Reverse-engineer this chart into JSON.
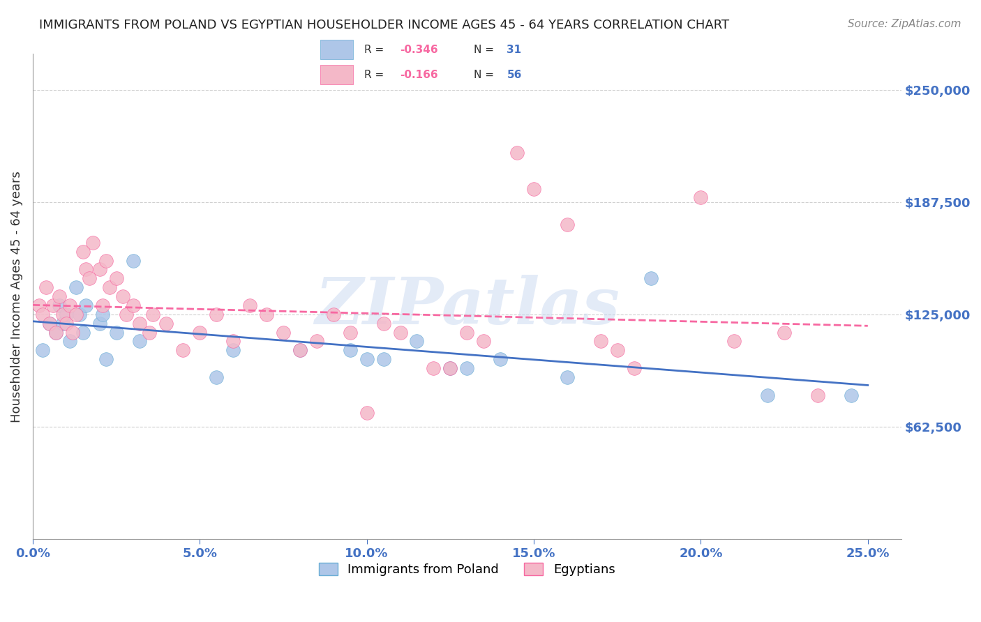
{
  "title": "IMMIGRANTS FROM POLAND VS EGYPTIAN HOUSEHOLDER INCOME AGES 45 - 64 YEARS CORRELATION CHART",
  "source": "Source: ZipAtlas.com",
  "ylabel": "Householder Income Ages 45 - 64 years",
  "xlabel_ticks": [
    "0.0%",
    "5.0%",
    "10.0%",
    "15.0%",
    "20.0%",
    "25.0%"
  ],
  "xlabel_vals": [
    0.0,
    5.0,
    10.0,
    15.0,
    20.0,
    25.0
  ],
  "ylim": [
    0,
    270000
  ],
  "xlim": [
    0.0,
    26.0
  ],
  "yticks": [
    0,
    62500,
    125000,
    187500,
    250000
  ],
  "ytick_labels": [
    "",
    "$62,500",
    "$125,000",
    "$187,500",
    "$250,000"
  ],
  "ytick_color": "#4472c4",
  "xtick_color": "#4472c4",
  "grid_color": "#d0d0d0",
  "poland_color": "#aec6e8",
  "egypt_color": "#f4b8c8",
  "poland_edge": "#6baed6",
  "egypt_edge": "#f768a1",
  "poland_line_color": "#4472c4",
  "egypt_line_color": "#f768a1",
  "legend_R_poland": "R = −0.346",
  "legend_N_poland": "N = 31",
  "legend_R_egypt": "R = −0.166",
  "legend_N_egypt": "N = 56",
  "poland_R": -0.346,
  "poland_N": 31,
  "egypt_R": -0.166,
  "egypt_N": 56,
  "watermark": "ZIPatlas",
  "watermark_color": "#c8d8f0",
  "poland_x": [
    0.3,
    0.5,
    0.7,
    0.8,
    0.9,
    1.0,
    1.1,
    1.3,
    1.4,
    1.5,
    1.6,
    2.0,
    2.1,
    2.2,
    2.5,
    3.0,
    3.2,
    5.5,
    6.0,
    8.0,
    9.5,
    10.0,
    10.5,
    11.5,
    12.5,
    13.0,
    14.0,
    16.0,
    18.5,
    22.0,
    24.5
  ],
  "poland_y": [
    105000,
    120000,
    115000,
    130000,
    120000,
    125000,
    110000,
    140000,
    125000,
    115000,
    130000,
    120000,
    125000,
    100000,
    115000,
    155000,
    110000,
    90000,
    105000,
    105000,
    105000,
    100000,
    100000,
    110000,
    95000,
    95000,
    100000,
    90000,
    145000,
    80000,
    80000
  ],
  "egypt_x": [
    0.2,
    0.3,
    0.4,
    0.5,
    0.6,
    0.7,
    0.8,
    0.9,
    1.0,
    1.1,
    1.2,
    1.3,
    1.5,
    1.6,
    1.7,
    1.8,
    2.0,
    2.1,
    2.2,
    2.3,
    2.5,
    2.7,
    2.8,
    3.0,
    3.2,
    3.5,
    3.6,
    4.0,
    4.5,
    5.0,
    5.5,
    6.0,
    6.5,
    7.0,
    7.5,
    8.0,
    8.5,
    9.0,
    9.5,
    10.0,
    10.5,
    11.0,
    12.0,
    12.5,
    13.0,
    13.5,
    14.5,
    15.0,
    16.0,
    17.0,
    17.5,
    18.0,
    20.0,
    21.0,
    22.5,
    23.5
  ],
  "egypt_y": [
    130000,
    125000,
    140000,
    120000,
    130000,
    115000,
    135000,
    125000,
    120000,
    130000,
    115000,
    125000,
    160000,
    150000,
    145000,
    165000,
    150000,
    130000,
    155000,
    140000,
    145000,
    135000,
    125000,
    130000,
    120000,
    115000,
    125000,
    120000,
    105000,
    115000,
    125000,
    110000,
    130000,
    125000,
    115000,
    105000,
    110000,
    125000,
    115000,
    70000,
    120000,
    115000,
    95000,
    95000,
    115000,
    110000,
    215000,
    195000,
    175000,
    110000,
    105000,
    95000,
    190000,
    110000,
    115000,
    80000
  ]
}
